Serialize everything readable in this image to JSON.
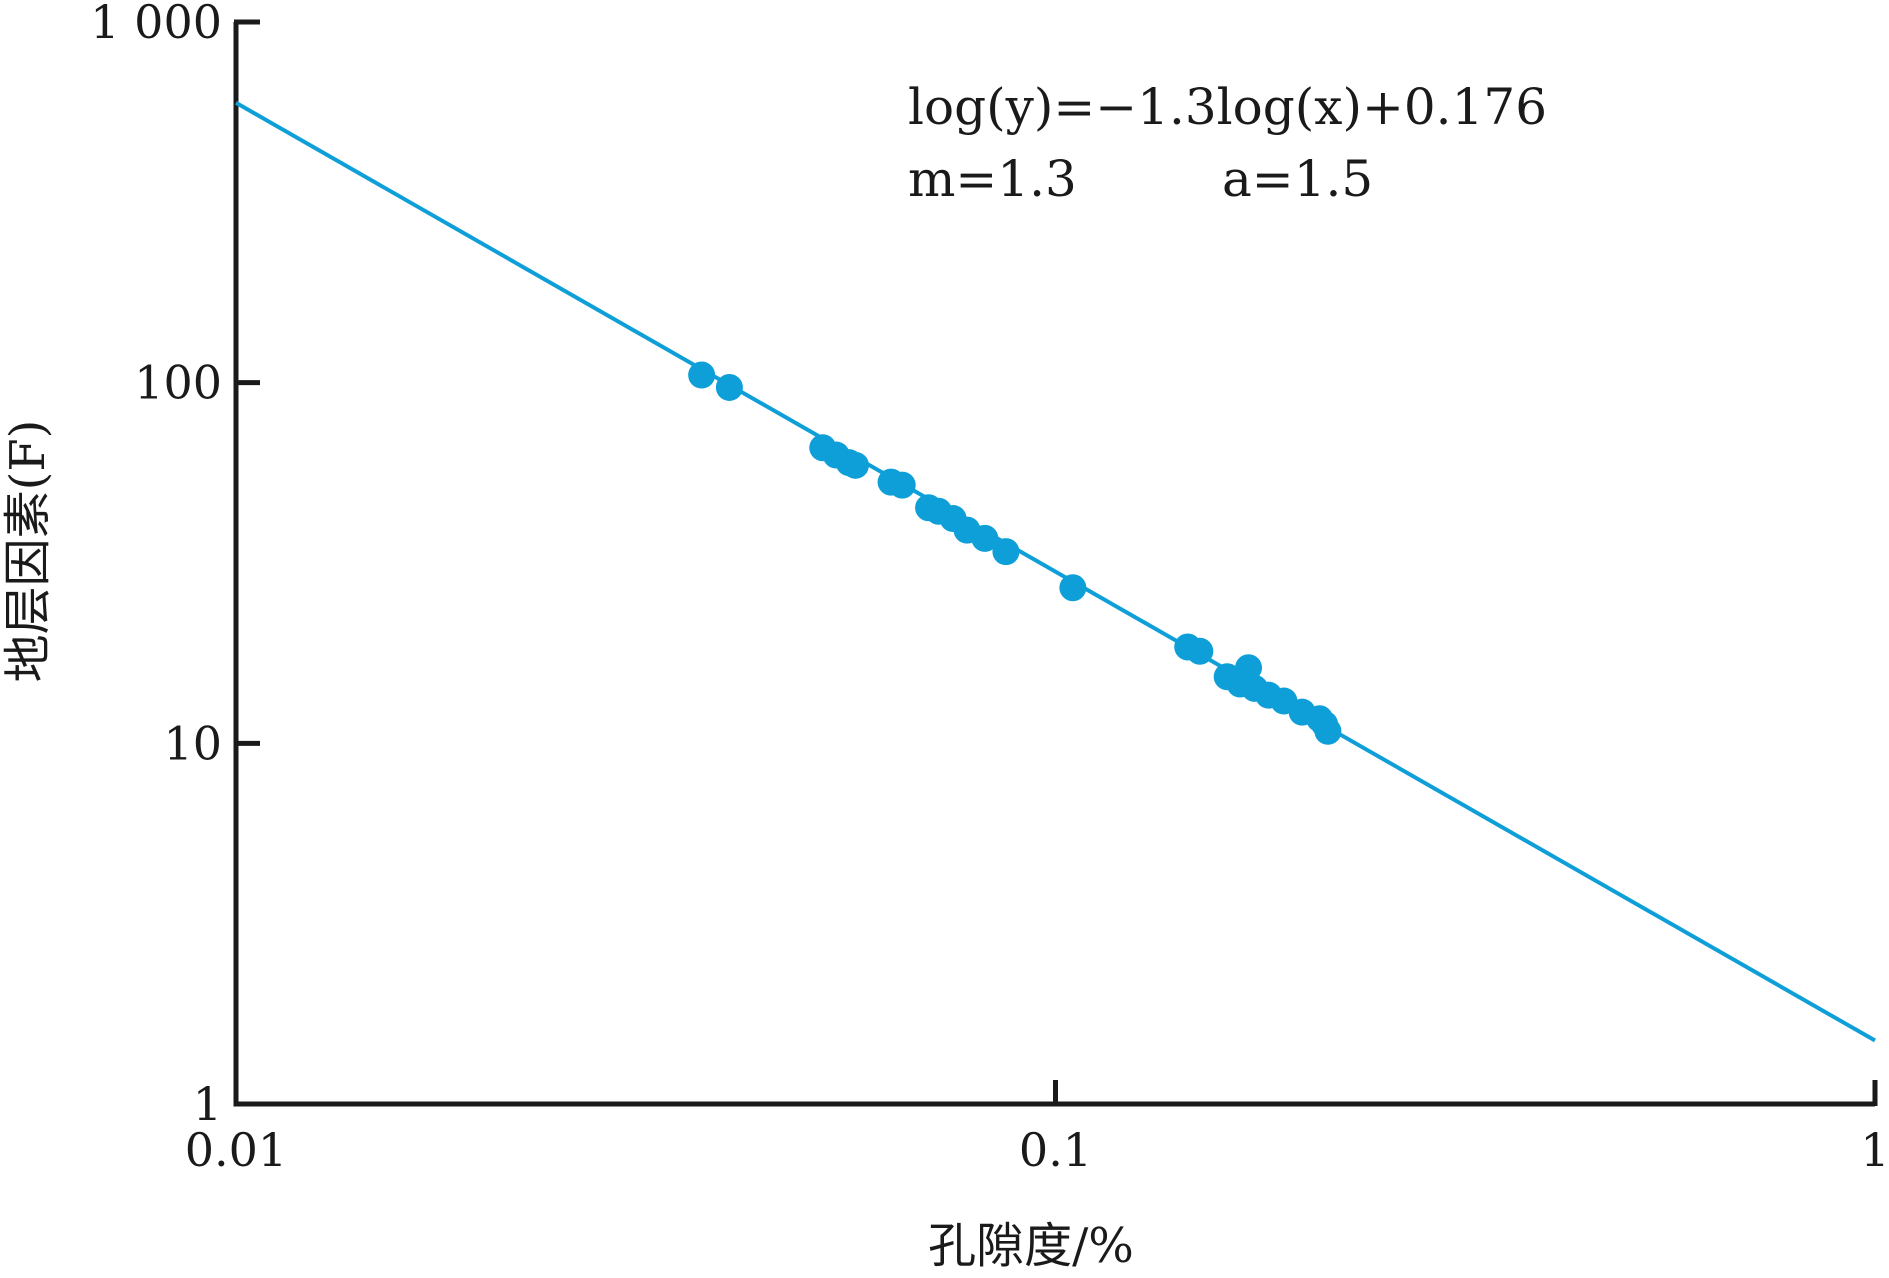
{
  "colors": {
    "series": "#0f9fd8",
    "axis": "#1a1a1a"
  },
  "chart_data": {
    "type": "scatter",
    "title": "",
    "xlabel": "孔隙度/%",
    "ylabel": "地层因素(F)",
    "x_scale": "log",
    "y_scale": "log",
    "xlim": [
      0.01,
      1
    ],
    "ylim": [
      1,
      1000
    ],
    "x_ticks": [
      "0.01",
      "0.1",
      "1"
    ],
    "y_ticks": [
      "1",
      "10",
      "100",
      "1 000"
    ],
    "grid": false,
    "annotations": {
      "equation": "log(y)=−1.3log(x)+0.176",
      "m": "m=1.3",
      "a": "a=1.5"
    },
    "fit_line": {
      "slope": -1.3,
      "intercept": 0.176
    },
    "points": [
      {
        "x": 0.037,
        "y": 105
      },
      {
        "x": 0.04,
        "y": 97
      },
      {
        "x": 0.052,
        "y": 66
      },
      {
        "x": 0.054,
        "y": 63
      },
      {
        "x": 0.056,
        "y": 60
      },
      {
        "x": 0.057,
        "y": 59
      },
      {
        "x": 0.063,
        "y": 53
      },
      {
        "x": 0.065,
        "y": 52
      },
      {
        "x": 0.07,
        "y": 45
      },
      {
        "x": 0.072,
        "y": 44
      },
      {
        "x": 0.075,
        "y": 42
      },
      {
        "x": 0.078,
        "y": 39
      },
      {
        "x": 0.082,
        "y": 37
      },
      {
        "x": 0.087,
        "y": 34
      },
      {
        "x": 0.105,
        "y": 27
      },
      {
        "x": 0.145,
        "y": 18.5
      },
      {
        "x": 0.15,
        "y": 18.0
      },
      {
        "x": 0.162,
        "y": 15.3
      },
      {
        "x": 0.168,
        "y": 14.6
      },
      {
        "x": 0.172,
        "y": 16.2
      },
      {
        "x": 0.175,
        "y": 14.2
      },
      {
        "x": 0.182,
        "y": 13.6
      },
      {
        "x": 0.19,
        "y": 13.1
      },
      {
        "x": 0.2,
        "y": 12.2
      },
      {
        "x": 0.21,
        "y": 11.7
      },
      {
        "x": 0.213,
        "y": 11.3
      },
      {
        "x": 0.215,
        "y": 10.8
      }
    ]
  }
}
